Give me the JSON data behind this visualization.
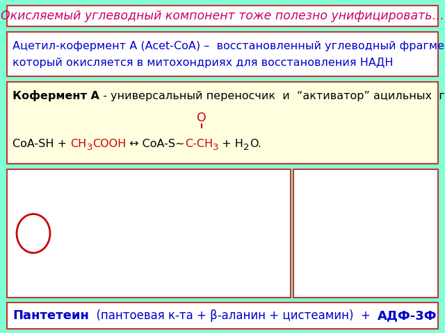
{
  "bg_color": "#7FFFD4",
  "title_box": {
    "text": "Окисляемый углеводный компонент тоже полезно унифицировать…",
    "text_color": "#CC0066",
    "box_color": "#FFFFFF",
    "border_color": "#CC3333",
    "fontsize": 12.5,
    "italic": true
  },
  "box2": {
    "line1": "Ацетил-кофермент А (Acet-CoA) –  восстановленный углеводный фрагмент,",
    "line2": "который окисляется в митохондриях для восстановления НАДН",
    "text_color": "#0000CC",
    "box_color": "#FFFFFF",
    "border_color": "#CC3333",
    "fontsize": 11.5
  },
  "box3": {
    "line1_bold": "Кофермент А",
    "line1_rest": " - универсальный переносчик  и  “активатор” ацильных  групп",
    "text_color": "#000000",
    "red_color": "#CC0000",
    "box_color": "#FFFFE0",
    "border_color": "#CC3333",
    "fontsize": 11.5
  },
  "bottom_box": {
    "bold_text": "Пантетеин",
    "rest_text": "  (пантоевая к-та + β-аланин + цистеамин)  +  АДФ-3Ф",
    "bold_suffix": "  +  АДФ-3Ф",
    "text_color": "#0000CC",
    "box_color": "#FFFFFF",
    "border_color": "#CC3333",
    "fontsize": 12
  },
  "image_area": {
    "box_color": "#FFFFFF",
    "border_color": "#CC3333"
  }
}
